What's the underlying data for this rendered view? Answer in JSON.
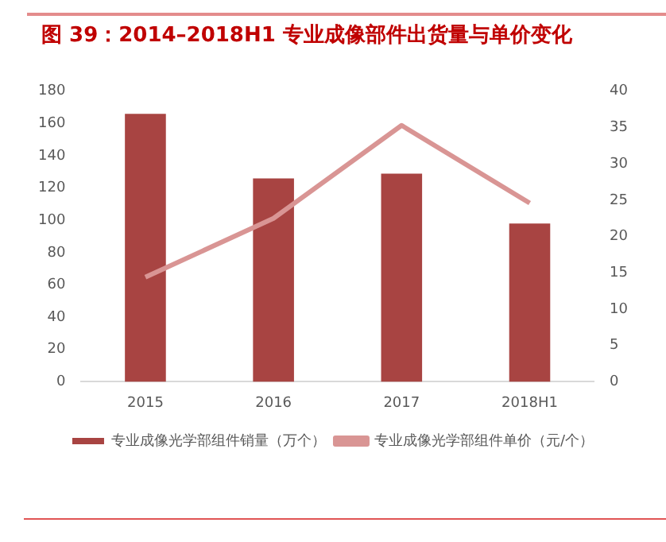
{
  "chart_data": {
    "type": "bar",
    "title": "图 39：2014–2018H1 专业成像部件出货量与单价变化",
    "categories": [
      "2015",
      "2016",
      "2017",
      "2018H1"
    ],
    "series": [
      {
        "name": "专业成像光学部组件销量（万个）",
        "color": "#a84442",
        "values": [
          166,
          126,
          129,
          98
        ]
      },
      {
        "name": "专业成像光学部组件单价（元/个）",
        "type": "line",
        "axis": "y2",
        "color": "#d99594",
        "values": [
          14.4,
          22.5,
          35.3,
          24.6
        ]
      }
    ],
    "ylim": [
      0,
      180
    ],
    "yticks": [
      0,
      20,
      40,
      60,
      80,
      100,
      120,
      140,
      160,
      180
    ],
    "y2lim": [
      0,
      40
    ],
    "y2ticks": [
      0,
      5,
      10,
      15,
      20,
      25,
      30,
      35,
      40
    ],
    "grid": false,
    "legend": "bottom",
    "marker": "none"
  }
}
